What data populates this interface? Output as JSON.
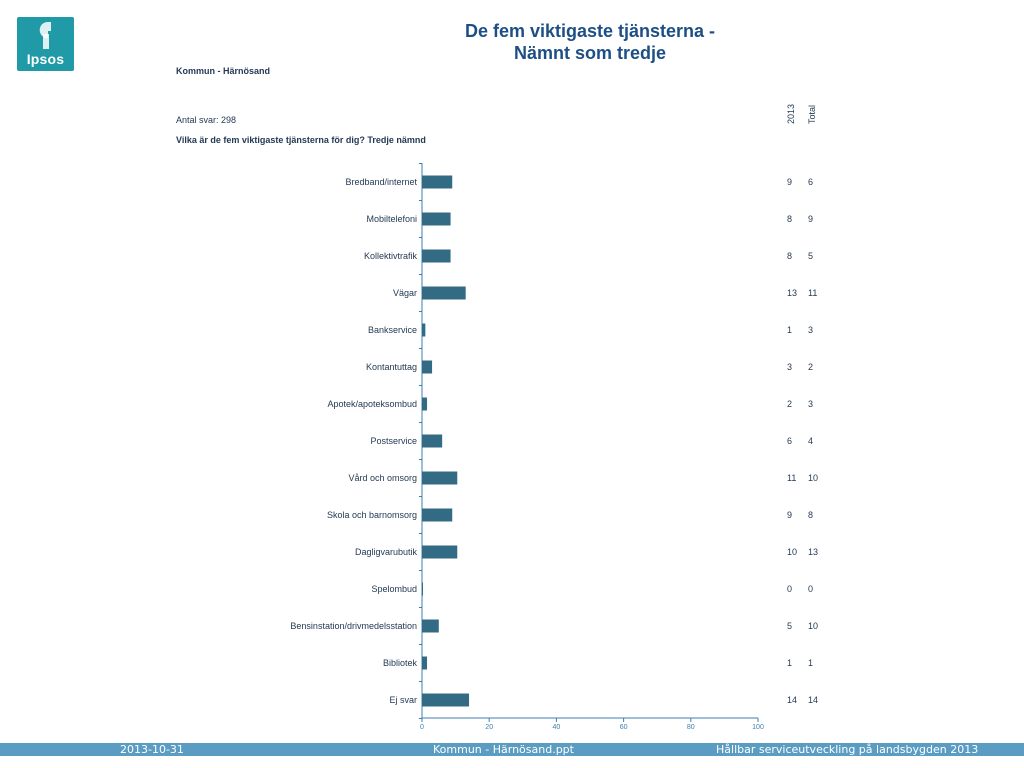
{
  "logo": {
    "text": "Ipsos",
    "color": "#1f9aa6"
  },
  "header": {
    "title_line1": "De fem viktigaste tjänsterna -",
    "title_line2": "Nämnt som tredje",
    "subtitle": "Kommun - Härnösand",
    "respondents": "Antal svar: 298",
    "question": "Vilka är de fem viktigaste tjänsterna för dig? Tredje nämnd"
  },
  "table_headers": {
    "col1": "2013",
    "col2": "Total"
  },
  "chart_data": {
    "type": "bar",
    "orientation": "horizontal",
    "categories": [
      "Bredband/internet",
      "Mobiltelefoni",
      "Kollektivtrafik",
      "Vägar",
      "Bankservice",
      "Kontantuttag",
      "Apotek/apoteksombud",
      "Postservice",
      "Vård och omsorg",
      "Skola och barnomsorg",
      "Dagligvarubutik",
      "Spelombud",
      "Bensinstation/drivmedelsstation",
      "Bibliotek",
      "Ej svar"
    ],
    "values": [
      9,
      8.5,
      8.5,
      13,
      1,
      3,
      1.5,
      6,
      10.5,
      9,
      10.5,
      0.3,
      5,
      1.5,
      14
    ],
    "col_2013": [
      "9",
      "8",
      "8",
      "13",
      "1",
      "3",
      "2",
      "6",
      "11",
      "9",
      "10",
      "0",
      "5",
      "1",
      "14"
    ],
    "col_total": [
      "6",
      "9",
      "5",
      "11",
      "3",
      "2",
      "3",
      "4",
      "10",
      "8",
      "13",
      "0",
      "10",
      "1",
      "14"
    ],
    "xlim": [
      0,
      100
    ],
    "xticks": [
      0,
      20,
      40,
      60,
      80,
      100
    ],
    "bar_color": "#336b85",
    "axis_color": "#3d7fb0"
  },
  "footer": {
    "date": "2013-10-31",
    "file": "Kommun - Härnösand.ppt",
    "project": "Hållbar serviceutveckling på landsbygden 2013",
    "bar_color": "#5b9cc2"
  }
}
